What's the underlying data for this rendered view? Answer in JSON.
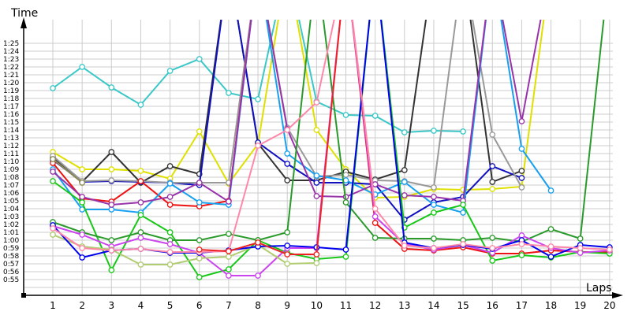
{
  "chart_data": {
    "type": "line",
    "title": "",
    "xlabel": "Laps",
    "ylabel": "Time",
    "x": [
      1,
      2,
      3,
      4,
      5,
      6,
      7,
      8,
      9,
      10,
      11,
      12,
      13,
      14,
      15,
      16,
      17,
      18,
      19,
      20
    ],
    "ylim": [
      53,
      87
    ],
    "y_ticks": [
      "0:55",
      "0:56",
      "0:57",
      "0:58",
      "0:59",
      "1:00",
      "1:01",
      "1:02",
      "1:03",
      "1:04",
      "1:05",
      "1:06",
      "1:07",
      "1:08",
      "1:09",
      "1:10",
      "1:11",
      "1:12",
      "1:13",
      "1:14",
      "1:15",
      "1:16",
      "1:17",
      "1:18",
      "1:19",
      "1:20",
      "1:21",
      "1:22",
      "1:23",
      "1:24",
      "1:25"
    ],
    "x_ticks": [
      "1",
      "2",
      "3",
      "4",
      "5",
      "6",
      "7",
      "8",
      "9",
      "10",
      "11",
      "12",
      "13",
      "14",
      "15",
      "16",
      "17",
      "18",
      "19",
      "20"
    ],
    "grid": true,
    "legend": "none",
    "units": "seconds per lap (values above 86 are off-chart pit laps)",
    "series": [
      {
        "name": "cyan",
        "color": "#3cc8c8",
        "values": [
          79.3,
          82.0,
          79.4,
          77.2,
          81.5,
          83.0,
          78.7,
          77.9,
          95,
          77.6,
          75.9,
          75.8,
          73.7,
          73.9,
          73.8,
          null,
          null,
          null,
          null,
          null
        ]
      },
      {
        "name": "yellow",
        "color": "#e0e000",
        "values": [
          71.2,
          69.0,
          69.0,
          68.8,
          67.8,
          73.8,
          67.2,
          72.2,
          95,
          74.0,
          69.0,
          65.4,
          65.5,
          66.5,
          66.4,
          66.5,
          66.8,
          95,
          null,
          null
        ]
      },
      {
        "name": "black",
        "color": "#333333",
        "values": [
          70.5,
          67.4,
          71.2,
          67.3,
          69.4,
          68.4,
          95,
          72.3,
          67.6,
          67.6,
          68.7,
          67.7,
          68.9,
          95,
          95,
          67.4,
          68.8,
          null,
          null,
          null
        ]
      },
      {
        "name": "navy",
        "color": "#1010c0",
        "values": [
          70.2,
          67.4,
          67.5,
          67.4,
          67.3,
          67.0,
          95,
          72.4,
          69.7,
          67.3,
          67.3,
          67.1,
          62.6,
          64.8,
          65.5,
          69.4,
          67.9,
          null,
          null,
          null
        ]
      },
      {
        "name": "gray",
        "color": "#999999",
        "values": [
          70.7,
          67.5,
          67.6,
          67.5,
          67.3,
          67.3,
          67.3,
          95,
          74.3,
          68.1,
          68.3,
          67.6,
          67.5,
          66.7,
          95,
          73.4,
          66.7,
          null,
          null,
          null
        ]
      },
      {
        "name": "red",
        "color": "#ee1111",
        "values": [
          69.8,
          65.3,
          64.9,
          67.5,
          64.5,
          64.3,
          65.0,
          95,
          95,
          95,
          95,
          62.2,
          58.9,
          58.7,
          59.1,
          58.3,
          58.3,
          58.7,
          58.5,
          58.5
        ]
      },
      {
        "name": "azure",
        "color": "#18a0f0",
        "values": [
          69.0,
          63.9,
          63.9,
          63.5,
          67.2,
          64.8,
          64.5,
          95,
          71.0,
          68.2,
          67.6,
          65.8,
          67.4,
          64.5,
          63.5,
          95,
          71.6,
          66.3,
          null,
          null
        ]
      },
      {
        "name": "purple",
        "color": "#9933aa",
        "values": [
          68.7,
          65.5,
          64.5,
          64.8,
          65.5,
          67.3,
          64.9,
          95,
          74.1,
          65.6,
          65.5,
          67.1,
          65.7,
          65.5,
          65.0,
          95,
          75.1,
          95,
          null,
          null
        ]
      },
      {
        "name": "olive",
        "color": "#8b8b55",
        "values": [
          70.3,
          67.3,
          null,
          null,
          null,
          null,
          null,
          null,
          null,
          null,
          null,
          null,
          null,
          null,
          null,
          null,
          null,
          null,
          null,
          null
        ]
      },
      {
        "name": "green",
        "color": "#18c818",
        "values": [
          67.5,
          64.8,
          56.2,
          63.2,
          61.0,
          55.3,
          56.3,
          60.0,
          58.4,
          57.6,
          57.9,
          95,
          61.6,
          63.5,
          64.5,
          57.4,
          58.1,
          57.8,
          58.5,
          58.3
        ]
      },
      {
        "name": "darkgreen",
        "color": "#2a9a2a",
        "values": [
          62.3,
          61.0,
          60.0,
          61.0,
          60.0,
          60.0,
          60.8,
          60.0,
          61.0,
          95,
          64.8,
          60.3,
          60.2,
          60.2,
          60.0,
          60.3,
          59.8,
          61.4,
          60.2,
          95
        ]
      },
      {
        "name": "violet",
        "color": "#cc44ee",
        "values": [
          61.8,
          60.7,
          59.2,
          60.3,
          59.5,
          58.4,
          55.5,
          55.5,
          59.0,
          59.0,
          95,
          63.0,
          59.5,
          58.8,
          59.4,
          58.4,
          60.6,
          59.0,
          58.4,
          58.7
        ]
      },
      {
        "name": "lightgreen",
        "color": "#b0cc70",
        "values": [
          60.7,
          59.2,
          58.8,
          56.9,
          56.9,
          57.7,
          57.9,
          59.4,
          57.0,
          57.1,
          null,
          null,
          null,
          null,
          null,
          null,
          null,
          null,
          null,
          null
        ]
      },
      {
        "name": "blue",
        "color": "#0000ee",
        "values": [
          61.9,
          57.8,
          58.7,
          58.9,
          58.4,
          58.4,
          58.7,
          59.2,
          59.3,
          59.1,
          58.8,
          95,
          59.7,
          59.0,
          59.4,
          58.9,
          60.0,
          57.9,
          59.4,
          59.1
        ]
      },
      {
        "name": "pink",
        "color": "#ff88aa",
        "values": [
          61.5,
          59.0,
          58.7,
          58.9,
          58.5,
          58.5,
          58.6,
          72.0,
          74.0,
          77.5,
          95,
          64.0,
          59.3,
          59.0,
          59.5,
          59.0,
          59.5,
          59.2,
          59.0,
          58.8
        ]
      },
      {
        "name": "red-low",
        "color": "#ee2222",
        "values": [
          null,
          null,
          null,
          null,
          null,
          58.8,
          58.6,
          59.7,
          58.2,
          58.2,
          95,
          null,
          null,
          null,
          null,
          null,
          null,
          null,
          null,
          null
        ]
      }
    ]
  }
}
